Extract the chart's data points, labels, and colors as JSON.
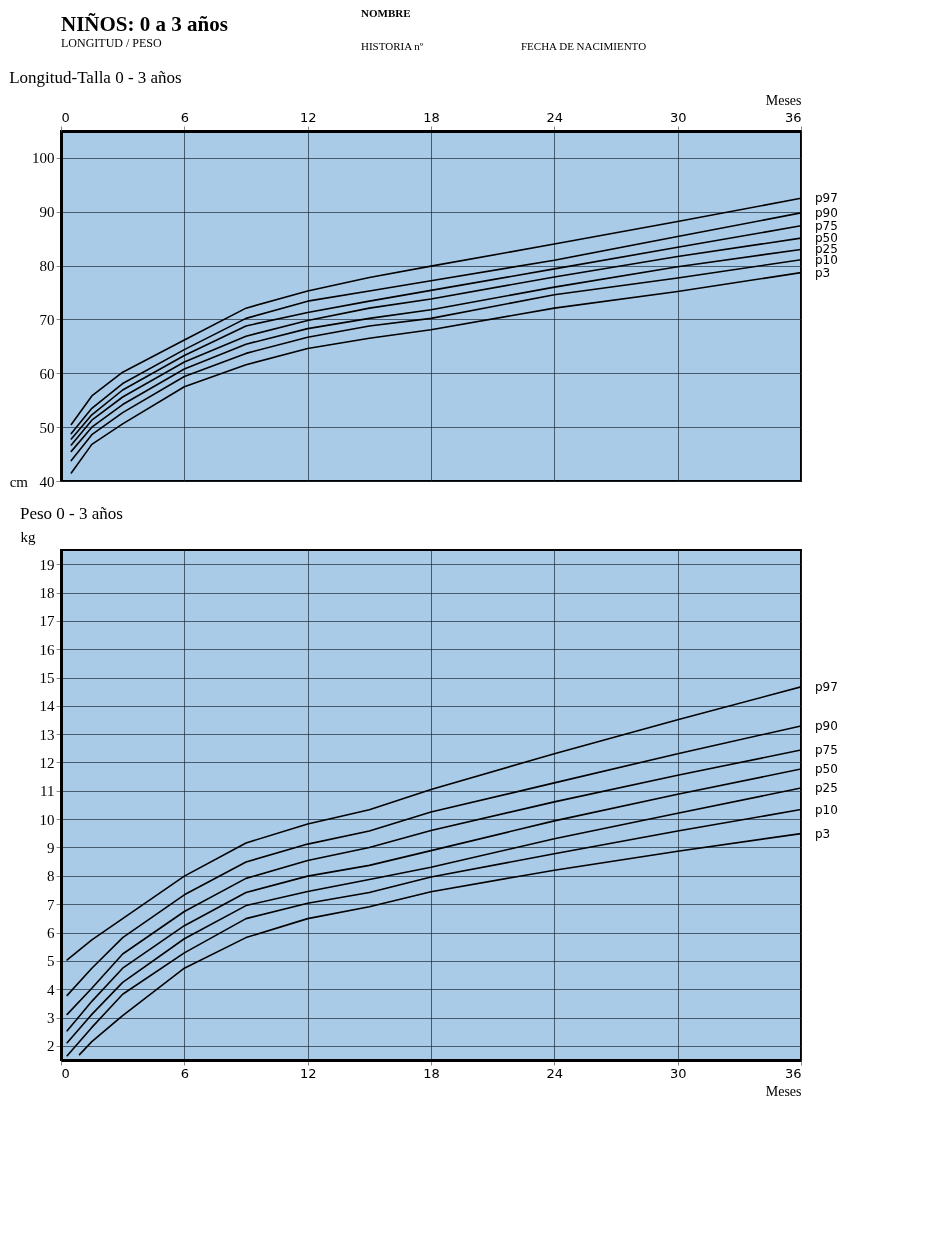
{
  "chart_data": [
    {
      "type": "other",
      "title": "NIÑOS: 0 a 3 años",
      "subtitle": "LONGITUD / PESO",
      "annotations": [
        "NOMBRE",
        "HISTORIA nº",
        "FECHA DE NACIMIENTO"
      ]
    },
    {
      "type": "line",
      "title": "Longitud-Talla 0 - 3 años",
      "xlabel": "Meses",
      "ylabel": "cm",
      "x": [
        0.5,
        1.5,
        3,
        6,
        9,
        12,
        15,
        18,
        24,
        30,
        36
      ],
      "xlim": [
        0,
        36
      ],
      "xticks": [
        0,
        6,
        12,
        18,
        24,
        30,
        36
      ],
      "ylim": [
        40,
        105
      ],
      "yticks": [
        40,
        50,
        60,
        70,
        80,
        90,
        100
      ],
      "grid": true,
      "series": [
        {
          "name": "p97",
          "color": "#000000",
          "values": [
            50.5,
            55.8,
            60.2,
            66.2,
            72.1,
            75.3,
            77.8,
            79.9,
            84.0,
            88.2,
            92.5
          ]
        },
        {
          "name": "p90",
          "color": "#000000",
          "values": [
            48.8,
            53.5,
            58.1,
            64.4,
            70.2,
            73.4,
            75.3,
            77.2,
            81.0,
            85.4,
            89.8
          ]
        },
        {
          "name": "p75",
          "color": "#000000",
          "values": [
            47.8,
            52.3,
            56.9,
            63.3,
            68.8,
            71.3,
            73.4,
            75.4,
            79.4,
            83.4,
            87.4
          ]
        },
        {
          "name": "p50",
          "color": "#000000",
          "values": [
            46.7,
            51.3,
            55.6,
            62.1,
            66.9,
            69.8,
            72.1,
            73.8,
            77.9,
            81.7,
            85.1
          ]
        },
        {
          "name": "p25",
          "color": "#000000",
          "values": [
            45.5,
            50.0,
            54.2,
            60.8,
            65.4,
            68.3,
            70.2,
            71.8,
            76.0,
            79.8,
            83.0
          ]
        },
        {
          "name": "p10",
          "color": "#000000",
          "values": [
            43.8,
            48.6,
            52.7,
            59.4,
            63.7,
            66.7,
            68.8,
            70.2,
            74.6,
            77.7,
            81.1
          ]
        },
        {
          "name": "p3",
          "color": "#000000",
          "values": [
            41.5,
            46.8,
            50.6,
            57.5,
            61.6,
            64.6,
            66.5,
            68.1,
            72.1,
            75.2,
            78.7
          ]
        }
      ]
    },
    {
      "type": "line",
      "title": "Peso 0 - 3 años",
      "xlabel": "Meses",
      "ylabel": "kg",
      "x": [
        0.3,
        1.5,
        3,
        6,
        9,
        12,
        15,
        18,
        24,
        30,
        36
      ],
      "xlim": [
        0,
        36
      ],
      "xticks": [
        0,
        6,
        12,
        18,
        24,
        30,
        36
      ],
      "ylim": [
        1.5,
        19.5
      ],
      "yticks": [
        2,
        3,
        4,
        5,
        6,
        7,
        8,
        9,
        10,
        11,
        12,
        13,
        14,
        15,
        16,
        17,
        18,
        19
      ],
      "grid": true,
      "series": [
        {
          "name": "p97",
          "color": "#000000",
          "values": [
            5.03,
            5.74,
            6.49,
            7.99,
            9.16,
            9.83,
            10.33,
            11.05,
            12.31,
            13.51,
            14.67
          ]
        },
        {
          "name": "p90",
          "color": "#000000",
          "values": [
            3.78,
            4.74,
            5.82,
            7.33,
            8.49,
            9.12,
            9.58,
            10.25,
            11.28,
            12.31,
            13.29
          ]
        },
        {
          "name": "p75",
          "color": "#000000",
          "values": [
            3.11,
            4.03,
            5.24,
            6.74,
            7.91,
            8.54,
            9.0,
            9.6,
            10.61,
            11.55,
            12.44
          ]
        },
        {
          "name": "p50",
          "color": "#000000",
          "values": [
            2.53,
            3.57,
            4.74,
            6.24,
            7.41,
            7.99,
            8.37,
            8.89,
            9.94,
            10.88,
            11.77
          ]
        },
        {
          "name": "p25",
          "color": "#000000",
          "values": [
            2.11,
            3.11,
            4.24,
            5.78,
            6.95,
            7.45,
            7.87,
            8.3,
            9.31,
            10.21,
            11.1
          ]
        },
        {
          "name": "p10",
          "color": "#000000",
          "values": [
            1.65,
            2.65,
            3.82,
            5.28,
            6.49,
            7.03,
            7.41,
            7.96,
            8.78,
            9.58,
            10.34
          ]
        },
        {
          "name": "p3",
          "color": "#000000",
          "x": [
            0.9,
            1.5,
            3,
            6,
            9,
            12,
            15,
            18,
            24,
            30,
            36
          ],
          "values": [
            1.69,
            2.15,
            3.07,
            4.74,
            5.82,
            6.49,
            6.91,
            7.44,
            8.2,
            8.87,
            9.49
          ]
        }
      ]
    }
  ]
}
